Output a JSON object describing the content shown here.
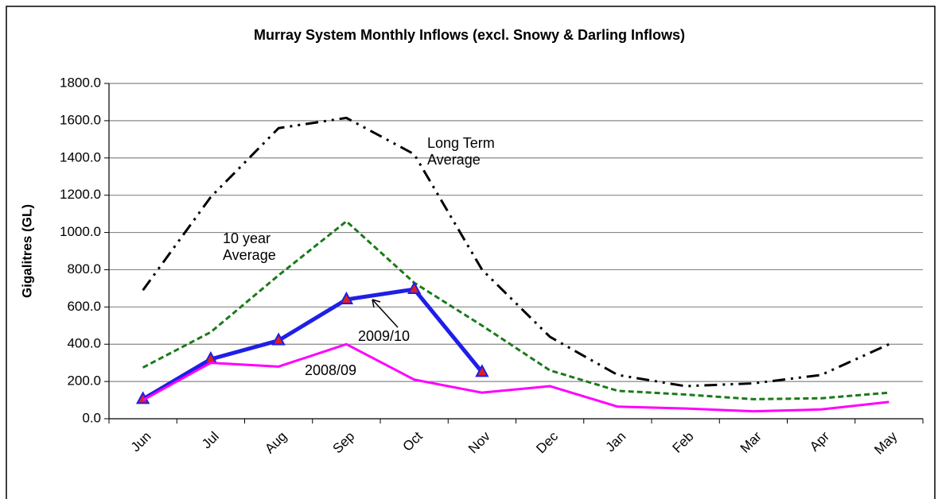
{
  "chart_data": {
    "type": "line",
    "title": "Murray System Monthly Inflows (excl. Snowy & Darling Inflows)",
    "y_label": "Gigalitres (GL)",
    "categories": [
      "Jun",
      "Jul",
      "Aug",
      "Sep",
      "Oct",
      "Nov",
      "Dec",
      "Jan",
      "Feb",
      "Mar",
      "Apr",
      "May"
    ],
    "series": [
      {
        "name": "Long Term Average",
        "color": "#000000",
        "style": "dash-dot-dot",
        "values": [
          690,
          1190,
          1560,
          1615,
          1420,
          800,
          440,
          235,
          175,
          190,
          235,
          400
        ]
      },
      {
        "name": "10 year Average",
        "color": "#1a7a1a",
        "style": "dashed",
        "values": [
          275,
          465,
          770,
          1060,
          730,
          500,
          260,
          150,
          130,
          105,
          110,
          140
        ]
      },
      {
        "name": "2009/10",
        "color": "#1f1fe6",
        "style": "bold",
        "marker": "triangle",
        "marker_color": "#e02020",
        "values": [
          105,
          320,
          420,
          640,
          695,
          250,
          null,
          null,
          null,
          null,
          null,
          null
        ]
      },
      {
        "name": "2008/09",
        "color": "#ff00ff",
        "style": "solid",
        "values": [
          100,
          300,
          280,
          400,
          210,
          140,
          175,
          65,
          55,
          40,
          50,
          90
        ]
      }
    ],
    "ylim": [
      0,
      1800
    ],
    "yticks": [
      {
        "value": 0,
        "label": "0.0"
      },
      {
        "value": 200,
        "label": "200.0"
      },
      {
        "value": 400,
        "label": "400.0"
      },
      {
        "value": 600,
        "label": "600.0"
      },
      {
        "value": 800,
        "label": "800.0"
      },
      {
        "value": 1000,
        "label": "1000.0"
      },
      {
        "value": 1200,
        "label": "1200.0"
      },
      {
        "value": 1400,
        "label": "1400.0"
      },
      {
        "value": 1600,
        "label": "1600.0"
      },
      {
        "value": 1800,
        "label": "1800.0"
      }
    ],
    "grid": true
  }
}
